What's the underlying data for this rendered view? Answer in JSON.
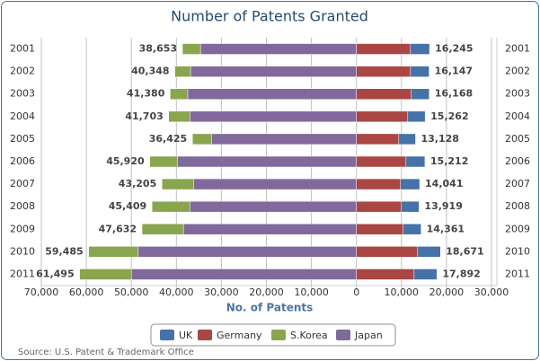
{
  "chart_data": {
    "type": "bar",
    "orientation": "horizontal",
    "title": "Number of Patents Granted",
    "x_label": "No. of Patents",
    "source": "Source: U.S. Patent & Trademark Office",
    "categories": [
      "2001",
      "2002",
      "2003",
      "2004",
      "2005",
      "2006",
      "2007",
      "2008",
      "2009",
      "2010",
      "2011"
    ],
    "series": [
      {
        "name": "UK",
        "color": "#4572a7",
        "values": [
          4245,
          4147,
          3968,
          3862,
          3728,
          4212,
          4241,
          3919,
          3961,
          5071,
          5092
        ]
      },
      {
        "name": "Germany",
        "color": "#aa4643",
        "values": [
          12000,
          12000,
          12200,
          11400,
          9400,
          11000,
          9800,
          10000,
          10400,
          13600,
          12800
        ]
      },
      {
        "name": "S.Korea",
        "color": "#89a54e",
        "values": [
          -4000,
          -3500,
          -3900,
          -4700,
          -4300,
          -6200,
          -7000,
          -8400,
          -9200,
          -11000,
          -11500
        ]
      },
      {
        "name": "Japan",
        "color": "#80699b",
        "values": [
          -34653,
          -36848,
          -37480,
          -37003,
          -32125,
          -39720,
          -36205,
          -37009,
          -38432,
          -48485,
          -49995
        ]
      }
    ],
    "totals": [
      {
        "values": [
          -38653,
          -40348,
          -41380,
          -41703,
          -36425,
          -45920,
          -43205,
          -45409,
          -47632,
          -59485,
          -61495
        ],
        "value_labels": [
          "38,653",
          "40,348",
          "41,380",
          "41,703",
          "36,425",
          "45,920",
          "43,205",
          "45,409",
          "47,632",
          "59,485",
          "61,495"
        ]
      },
      {
        "values": [
          16245,
          16147,
          16168,
          15262,
          13128,
          15212,
          14041,
          13919,
          14361,
          18671,
          17892
        ],
        "value_labels": [
          "16,245",
          "16,147",
          "16,168",
          "15,262",
          "13,128",
          "15,212",
          "14,041",
          "13,919",
          "14,361",
          "18,671",
          "17,892"
        ]
      }
    ],
    "xlim": [
      -70000,
      30000
    ],
    "xticks": [
      {
        "value": -70000,
        "label": "70,000"
      },
      {
        "value": -60000,
        "label": "60,000"
      },
      {
        "value": -50000,
        "label": "50,000"
      },
      {
        "value": -40000,
        "label": "40,000"
      },
      {
        "value": -30000,
        "label": "30,000"
      },
      {
        "value": -20000,
        "label": "20,000"
      },
      {
        "value": -10000,
        "label": "10,000"
      },
      0,
      {
        "value": 10000,
        "label": "10,000"
      },
      {
        "value": 20000,
        "label": "20,000"
      },
      {
        "value": 30000,
        "label": "30,000"
      }
    ],
    "grid": true,
    "legend": "bottom"
  }
}
